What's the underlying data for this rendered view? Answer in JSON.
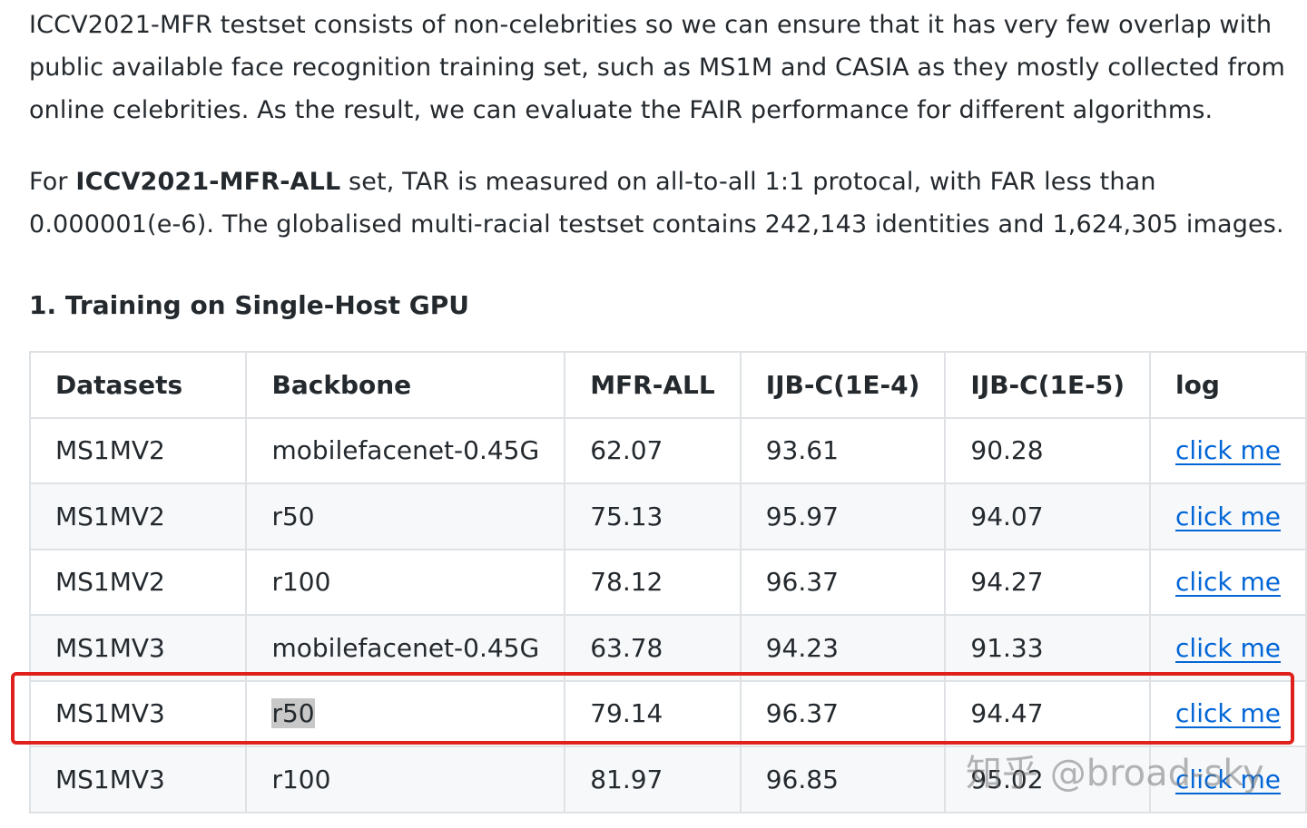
{
  "paragraph1": "ICCV2021-MFR testset consists of non-celebrities so we can ensure that it has very few overlap with public available face recognition training set, such as MS1M and CASIA as they mostly collected from online celebrities. As the result, we can evaluate the FAIR performance for different algorithms.",
  "paragraph2": {
    "prefix": "For ",
    "bold": "ICCV2021-MFR-ALL",
    "suffix": " set, TAR is measured on all-to-all 1:1 protocal, with FAR less than 0.000001(e-6). The globalised multi-racial testset contains 242,143 identities and 1,624,305 images."
  },
  "heading": "1. Training on Single-Host GPU",
  "table": {
    "headers": [
      "Datasets",
      "Backbone",
      "MFR-ALL",
      "IJB-C(1E-4)",
      "IJB-C(1E-5)",
      "log"
    ],
    "rows": [
      [
        "MS1MV2",
        "mobilefacenet-0.45G",
        "62.07",
        "93.61",
        "90.28",
        "click me"
      ],
      [
        "MS1MV2",
        "r50",
        "75.13",
        "95.97",
        "94.07",
        "click me"
      ],
      [
        "MS1MV2",
        "r100",
        "78.12",
        "96.37",
        "94.27",
        "click me"
      ],
      [
        "MS1MV3",
        "mobilefacenet-0.45G",
        "63.78",
        "94.23",
        "91.33",
        "click me"
      ],
      [
        "MS1MV3",
        "r50",
        "79.14",
        "96.37",
        "94.47",
        "click me"
      ],
      [
        "MS1MV3",
        "r100",
        "81.97",
        "96.85",
        "95.02",
        "click me"
      ]
    ]
  },
  "watermark": "知乎 @broad-sky",
  "colors": {
    "link": "#0366d6",
    "border": "#dfe2e5",
    "stripe": "#f6f8fa",
    "highlight_box": "#e0201c"
  }
}
